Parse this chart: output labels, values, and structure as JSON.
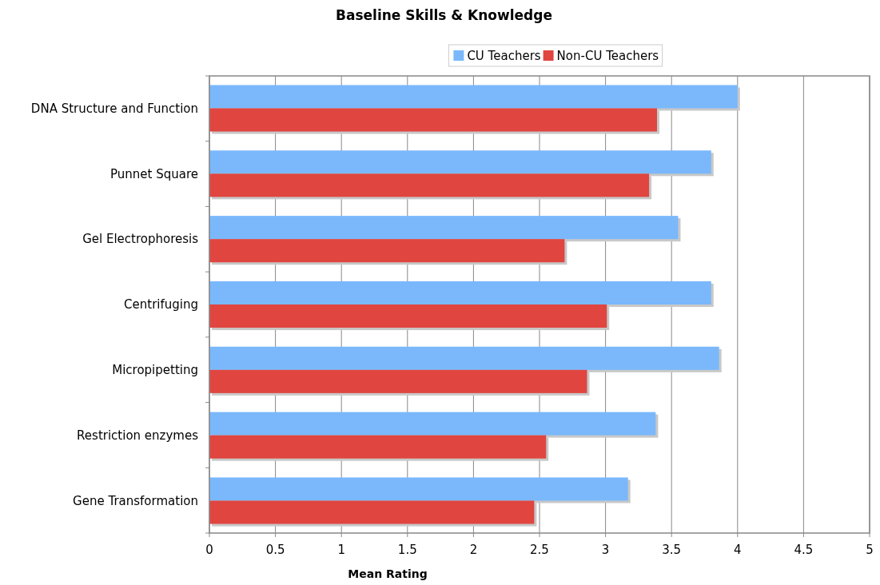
{
  "chart_data": {
    "type": "bar",
    "orientation": "horizontal",
    "title": "Baseline Skills & Knowledge",
    "xlabel": "Mean Rating",
    "categories": [
      "DNA Structure and Function",
      "Punnet Square",
      "Gel Electrophoresis",
      "Centrifuging",
      "Micropipetting",
      "Restriction enzymes",
      "Gene Transformation"
    ],
    "series": [
      {
        "name": "CU Teachers",
        "color": "#7ab8fb",
        "values": [
          4.0,
          3.8,
          3.55,
          3.8,
          3.86,
          3.38,
          3.17
        ]
      },
      {
        "name": "Non-CU Teachers",
        "color": "#e04540",
        "values": [
          3.39,
          3.33,
          2.69,
          3.01,
          2.86,
          2.55,
          2.46
        ]
      }
    ],
    "xlim": [
      0,
      5
    ],
    "xticks": [
      0,
      0.5,
      1,
      1.5,
      2,
      2.5,
      3,
      3.5,
      4,
      4.5,
      5
    ],
    "grid": "x",
    "legend": "top"
  }
}
